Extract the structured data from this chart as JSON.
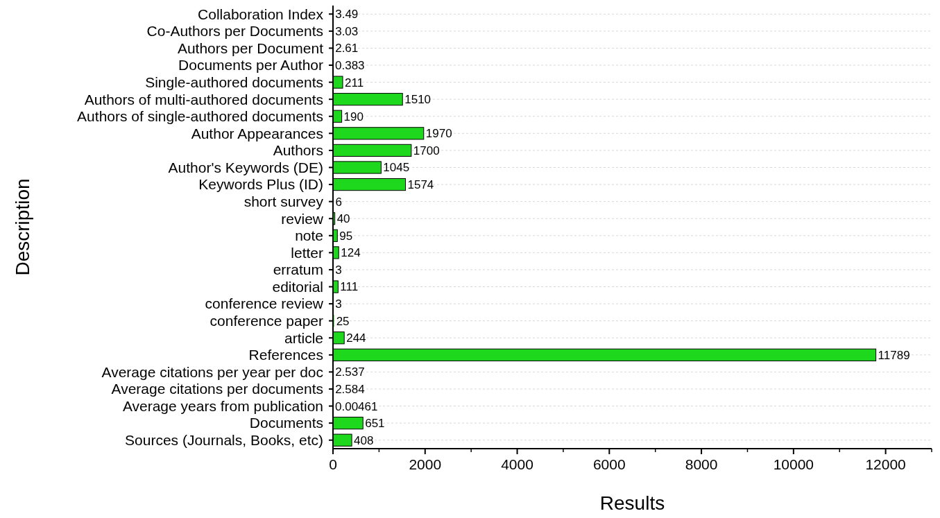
{
  "chart_data": {
    "type": "bar",
    "orientation": "horizontal",
    "xlabel": "Results",
    "ylabel": "Description",
    "categories": [
      "Collaboration Index",
      "Co-Authors per Documents",
      "Authors per Document",
      "Documents per Author",
      "Single-authored documents",
      "Authors of multi-authored documents",
      "Authors of single-authored documents",
      "Author Appearances",
      "Authors",
      "Author's Keywords (DE)",
      "Keywords Plus (ID)",
      "short survey",
      "review",
      "note",
      "letter",
      "erratum",
      "editorial",
      "conference review",
      "conference paper",
      "article",
      "References",
      "Average citations per year per doc",
      "Average citations per documents",
      "Average years from publication",
      "Documents",
      "Sources (Journals, Books, etc)"
    ],
    "values": [
      3.49,
      3.03,
      2.61,
      0.383,
      211,
      1510,
      190,
      1970,
      1700,
      1045,
      1574,
      6,
      40,
      95,
      124,
      3,
      111,
      3,
      25,
      244,
      11789,
      2.537,
      2.584,
      0.00461,
      651,
      408
    ],
    "color": "#1ed81e",
    "xlim": [
      0,
      13000
    ],
    "xticks": [
      0,
      2000,
      4000,
      6000,
      8000,
      10000,
      12000
    ],
    "grid": "y",
    "data_labels": true
  }
}
